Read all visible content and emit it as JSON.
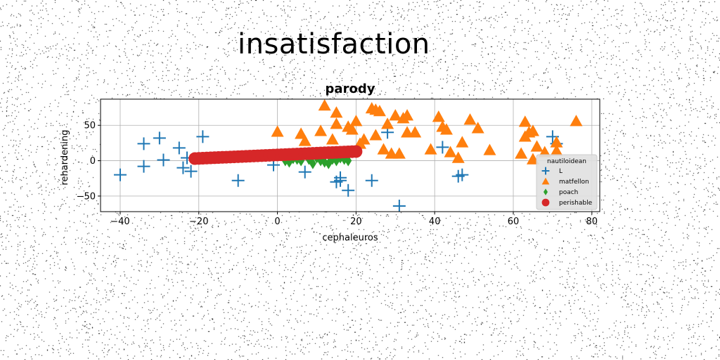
{
  "figure_title": "insatisfaction",
  "colors": {
    "L": "#1f77b4",
    "matfellon": "#ff7f0e",
    "poach": "#2ca02c",
    "perishable": "#d62728"
  },
  "chart_data": {
    "type": "scatter",
    "title": "parody",
    "xlabel": "cephaleuros",
    "ylabel": "rehardening",
    "xlim": [
      -45,
      82
    ],
    "ylim": [
      -72,
      87
    ],
    "xticks": [
      -40,
      -20,
      0,
      20,
      40,
      60,
      80
    ],
    "yticks": [
      -50,
      0,
      50
    ],
    "grid": true,
    "legend": {
      "title": "nautiloidean",
      "placement": "lower-right"
    },
    "series": [
      {
        "name": "L",
        "marker": "plus",
        "points": [
          [
            -40,
            -20
          ],
          [
            -34,
            24
          ],
          [
            -34,
            -8
          ],
          [
            -30,
            32
          ],
          [
            -29,
            1
          ],
          [
            -25,
            18
          ],
          [
            -24,
            -10
          ],
          [
            -23,
            4
          ],
          [
            -22,
            -15
          ],
          [
            -19,
            34
          ],
          [
            -10,
            -28
          ],
          [
            -1,
            -6
          ],
          [
            7,
            -16
          ],
          [
            15,
            -30
          ],
          [
            16,
            -24
          ],
          [
            16,
            -28
          ],
          [
            18,
            -42
          ],
          [
            24,
            -28
          ],
          [
            28,
            40
          ],
          [
            31,
            -64
          ],
          [
            42,
            19
          ],
          [
            46,
            -22
          ],
          [
            47,
            -20
          ],
          [
            70,
            34
          ],
          [
            71,
            24
          ]
        ]
      },
      {
        "name": "matfellon",
        "marker": "triangle",
        "points": [
          [
            0,
            41
          ],
          [
            6,
            38
          ],
          [
            7,
            28
          ],
          [
            11,
            42
          ],
          [
            12,
            78
          ],
          [
            14,
            30
          ],
          [
            15,
            52
          ],
          [
            15,
            68
          ],
          [
            18,
            48
          ],
          [
            19,
            44
          ],
          [
            20,
            56
          ],
          [
            21,
            24
          ],
          [
            22,
            30
          ],
          [
            24,
            74
          ],
          [
            25,
            72
          ],
          [
            25,
            36
          ],
          [
            26,
            70
          ],
          [
            27,
            16
          ],
          [
            28,
            52
          ],
          [
            29,
            10
          ],
          [
            30,
            64
          ],
          [
            31,
            10
          ],
          [
            32,
            60
          ],
          [
            33,
            64
          ],
          [
            33,
            40
          ],
          [
            35,
            40
          ],
          [
            39,
            16
          ],
          [
            41,
            62
          ],
          [
            42,
            48
          ],
          [
            43,
            44
          ],
          [
            44,
            12
          ],
          [
            46,
            4
          ],
          [
            47,
            26
          ],
          [
            49,
            58
          ],
          [
            51,
            46
          ],
          [
            54,
            15
          ],
          [
            62,
            10
          ],
          [
            63,
            55
          ],
          [
            63,
            34
          ],
          [
            64,
            40
          ],
          [
            65,
            42
          ],
          [
            65,
            2
          ],
          [
            66,
            20
          ],
          [
            68,
            12
          ],
          [
            71,
            14
          ],
          [
            71,
            26
          ],
          [
            76,
            56
          ]
        ]
      },
      {
        "name": "poach",
        "marker": "diamond",
        "points": [
          [
            2,
            0
          ],
          [
            3,
            -2
          ],
          [
            4,
            3
          ],
          [
            5,
            2
          ],
          [
            6,
            0
          ],
          [
            6,
            8
          ],
          [
            8,
            2
          ],
          [
            9,
            -4
          ],
          [
            10,
            4
          ],
          [
            11,
            0
          ],
          [
            12,
            -2
          ],
          [
            13,
            -4
          ],
          [
            14,
            2
          ],
          [
            15,
            0
          ],
          [
            16,
            4
          ],
          [
            17,
            2
          ],
          [
            18,
            0
          ]
        ]
      },
      {
        "name": "perishable",
        "marker": "circle",
        "x_range": [
          -21,
          20
        ],
        "y_range": [
          3,
          13
        ],
        "point_count": 42
      }
    ]
  }
}
